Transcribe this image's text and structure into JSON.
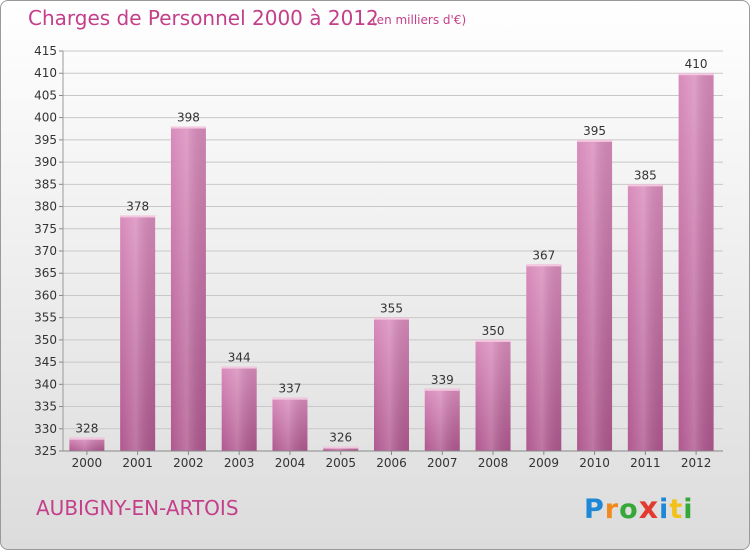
{
  "header": {
    "title": "Charges de Personnel 2000 à 2012",
    "subtitle": "(en milliers d'€)"
  },
  "footer": {
    "commune": "AUBIGNY-EN-ARTOIS",
    "brand_letters": [
      "P",
      "r",
      "o",
      "x",
      "i",
      "t",
      "i"
    ],
    "brand_colors": [
      "#1e88d6",
      "#f08a1c",
      "#36a83a",
      "#e23a2e",
      "#1e88d6",
      "#f2c21a",
      "#36a83a"
    ]
  },
  "chart_data": {
    "type": "bar",
    "title": "Charges de Personnel 2000 à 2012",
    "subtitle": "(en milliers d'€)",
    "categories": [
      "2000",
      "2001",
      "2002",
      "2003",
      "2004",
      "2005",
      "2006",
      "2007",
      "2008",
      "2009",
      "2010",
      "2011",
      "2012"
    ],
    "values": [
      328,
      378,
      398,
      344,
      337,
      326,
      355,
      339,
      350,
      367,
      395,
      385,
      410
    ],
    "ylim": [
      325,
      415
    ],
    "yticks": [
      325,
      330,
      335,
      340,
      345,
      350,
      355,
      360,
      365,
      370,
      375,
      380,
      385,
      390,
      395,
      400,
      405,
      410,
      415
    ],
    "grid": true,
    "bar_color": "#d98cbc",
    "bar_color_dark": "#b0588f"
  }
}
